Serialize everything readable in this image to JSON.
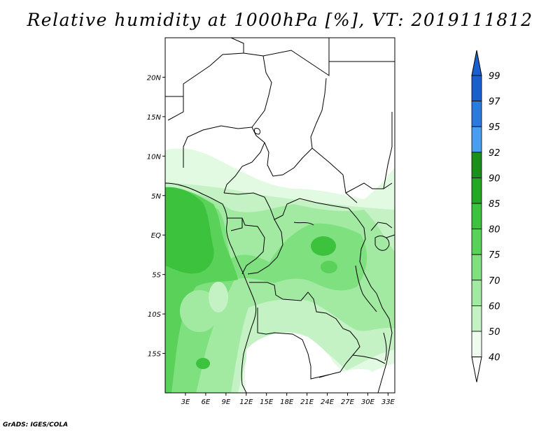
{
  "title": "Relative humidity at 1000hPa [%], VT: 2019111812",
  "credit": "GrADS: IGES/COLA",
  "map": {
    "lon_range": [
      0,
      34
    ],
    "lat_range": [
      -20,
      25
    ],
    "lat_ticks": [
      {
        "value": 20,
        "label": "20N"
      },
      {
        "value": 15,
        "label": "15N"
      },
      {
        "value": 10,
        "label": "10N"
      },
      {
        "value": 5,
        "label": "5N"
      },
      {
        "value": 0,
        "label": "EQ"
      },
      {
        "value": -5,
        "label": "5S"
      },
      {
        "value": -10,
        "label": "10S"
      },
      {
        "value": -15,
        "label": "15S"
      }
    ],
    "lon_ticks": [
      {
        "value": 3,
        "label": "3E"
      },
      {
        "value": 6,
        "label": "6E"
      },
      {
        "value": 9,
        "label": "9E"
      },
      {
        "value": 12,
        "label": "12E"
      },
      {
        "value": 15,
        "label": "15E"
      },
      {
        "value": 18,
        "label": "18E"
      },
      {
        "value": 21,
        "label": "21E"
      },
      {
        "value": 24,
        "label": "24E"
      },
      {
        "value": 27,
        "label": "27E"
      },
      {
        "value": 30,
        "label": "30E"
      },
      {
        "value": 33,
        "label": "33E"
      }
    ]
  },
  "colorbar": {
    "levels": [
      {
        "label": "99",
        "color": "#1a5fd0"
      },
      {
        "label": "97",
        "color": "#2a7ae0"
      },
      {
        "label": "95",
        "color": "#4a9ef0"
      },
      {
        "label": "92",
        "color": "#1a8f1a"
      },
      {
        "label": "90",
        "color": "#24a824"
      },
      {
        "label": "85",
        "color": "#3cc23c"
      },
      {
        "label": "80",
        "color": "#5ad25a"
      },
      {
        "label": "75",
        "color": "#7ee07e"
      },
      {
        "label": "70",
        "color": "#a2eaa2"
      },
      {
        "label": "60",
        "color": "#c4f2c4"
      },
      {
        "label": "50",
        "color": "#e2f9e2"
      },
      {
        "label": "40",
        "color": "#ffffff"
      }
    ],
    "top_arrow_color": "#1a5fd0"
  }
}
